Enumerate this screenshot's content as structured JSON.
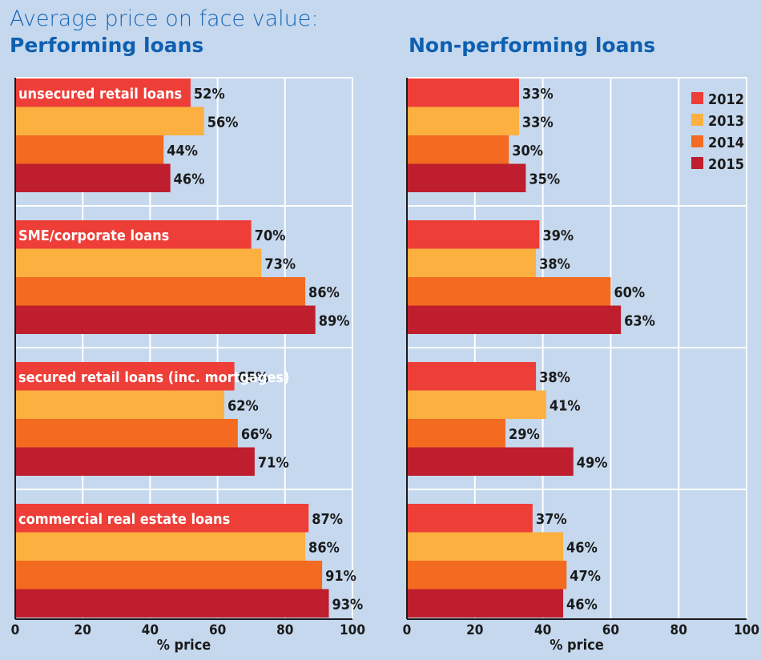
{
  "title": "Average price on face value:",
  "chart_data": {
    "type": "bar",
    "orientation": "horizontal",
    "categories": [
      "unsecured retail loans",
      "SME/corporate loans",
      "secured retail loans (inc. mortgages)",
      "commercial real estate loans"
    ],
    "series_names": [
      "2012",
      "2013",
      "2014",
      "2015"
    ],
    "colors": [
      "#ee3e38",
      "#fbb040",
      "#f26b21",
      "#be1e2d"
    ],
    "xlabel": "% price",
    "xlim": [
      0,
      100
    ],
    "xticks": [
      "0",
      "20",
      "40",
      "60",
      "80",
      "100"
    ],
    "grid": true,
    "legend": "top-right",
    "panels": [
      {
        "title": "Performing loans",
        "values": [
          [
            52,
            56,
            44,
            46
          ],
          [
            70,
            73,
            86,
            89
          ],
          [
            65,
            62,
            66,
            71
          ],
          [
            87,
            86,
            91,
            93
          ]
        ],
        "labels": [
          [
            "52%",
            "56%",
            "44%",
            "46%"
          ],
          [
            "70%",
            "73%",
            "86%",
            "89%"
          ],
          [
            "65%",
            "62%",
            "66%",
            "71%"
          ],
          [
            "87%",
            "86%",
            "91%",
            "93%"
          ]
        ]
      },
      {
        "title": "Non-performing loans",
        "values": [
          [
            33,
            33,
            30,
            35
          ],
          [
            39,
            38,
            60,
            63
          ],
          [
            38,
            41,
            29,
            49
          ],
          [
            37,
            46,
            47,
            46
          ]
        ],
        "labels": [
          [
            "33%",
            "33%",
            "30%",
            "35%"
          ],
          [
            "39%",
            "38%",
            "60%",
            "63%"
          ],
          [
            "38%",
            "41%",
            "29%",
            "49%"
          ],
          [
            "37%",
            "46%",
            "47%",
            "46%"
          ]
        ]
      }
    ]
  }
}
